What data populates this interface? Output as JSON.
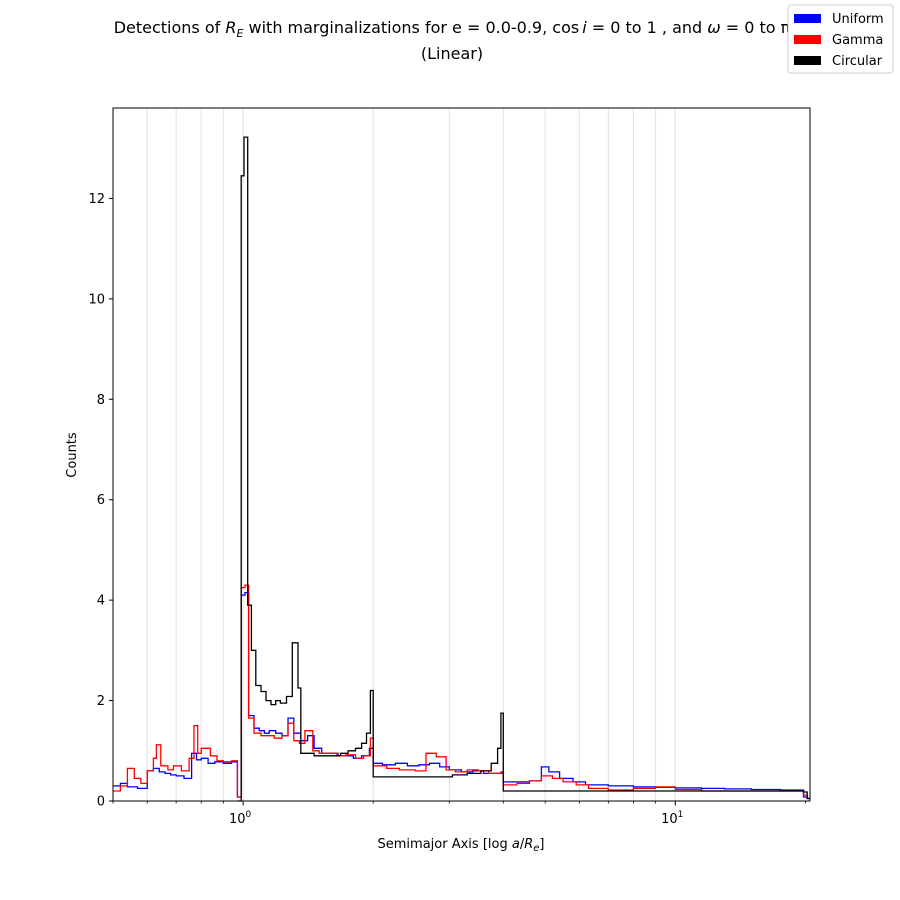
{
  "chart_data": {
    "type": "line",
    "drawstyle": "steps-post",
    "title_line1_pre": "Detections of ",
    "title_var": "R",
    "title_var_sub": "E",
    "title_line1_mid1": " with marginalizations for e = 0.0-0.9, cos",
    "title_i": "i",
    "title_line1_mid2": " = 0 to 1 , and ",
    "title_omega": "ω",
    "title_line1_end": " = 0 to π",
    "title_line2": "(Linear)",
    "xlabel_pre": "Semimajor Axis [log ",
    "xlabel_a": "a",
    "xlabel_slash": "/",
    "xlabel_R": "R",
    "xlabel_sub": "e",
    "xlabel_post": "]",
    "ylabel": "Counts",
    "xscale": "log",
    "xlim": [
      0.5,
      20.5
    ],
    "ylim": [
      0,
      13.8
    ],
    "ytick_labels": [
      "0",
      "2",
      "4",
      "6",
      "8",
      "10",
      "12"
    ],
    "xtick_base": "10",
    "xtick_exponents": [
      "0",
      "1"
    ],
    "grid": "vertical minor lines at 0.6–0.9, 1, 2–9, 10",
    "legend_position": "top-right (outside axes)",
    "series": [
      {
        "name": "Uniform",
        "color": "#0000ff",
        "points": [
          [
            0.5,
            0.3
          ],
          [
            0.52,
            0.35
          ],
          [
            0.54,
            0.28
          ],
          [
            0.57,
            0.25
          ],
          [
            0.6,
            0.6
          ],
          [
            0.62,
            0.65
          ],
          [
            0.64,
            0.58
          ],
          [
            0.66,
            0.55
          ],
          [
            0.68,
            0.52
          ],
          [
            0.7,
            0.5
          ],
          [
            0.73,
            0.45
          ],
          [
            0.76,
            0.95
          ],
          [
            0.78,
            0.82
          ],
          [
            0.8,
            0.85
          ],
          [
            0.83,
            0.75
          ],
          [
            0.86,
            0.78
          ],
          [
            0.9,
            0.75
          ],
          [
            0.94,
            0.78
          ],
          [
            0.97,
            0.08
          ],
          [
            0.99,
            4.1
          ],
          [
            1.01,
            4.15
          ],
          [
            1.03,
            1.7
          ],
          [
            1.06,
            1.45
          ],
          [
            1.09,
            1.4
          ],
          [
            1.12,
            1.35
          ],
          [
            1.15,
            1.4
          ],
          [
            1.19,
            1.35
          ],
          [
            1.23,
            1.3
          ],
          [
            1.27,
            1.65
          ],
          [
            1.31,
            1.35
          ],
          [
            1.36,
            1.2
          ],
          [
            1.41,
            1.3
          ],
          [
            1.46,
            1.05
          ],
          [
            1.52,
            0.95
          ],
          [
            1.58,
            0.95
          ],
          [
            1.65,
            0.9
          ],
          [
            1.72,
            0.9
          ],
          [
            1.8,
            0.85
          ],
          [
            1.88,
            0.9
          ],
          [
            1.96,
            1.05
          ],
          [
            2.0,
            0.75
          ],
          [
            2.1,
            0.72
          ],
          [
            2.25,
            0.75
          ],
          [
            2.4,
            0.7
          ],
          [
            2.55,
            0.72
          ],
          [
            2.7,
            0.75
          ],
          [
            2.85,
            0.68
          ],
          [
            3.0,
            0.62
          ],
          [
            3.2,
            0.58
          ],
          [
            3.4,
            0.6
          ],
          [
            3.6,
            0.55
          ],
          [
            3.8,
            0.55
          ],
          [
            4.0,
            0.38
          ],
          [
            4.3,
            0.38
          ],
          [
            4.6,
            0.4
          ],
          [
            4.9,
            0.68
          ],
          [
            5.1,
            0.58
          ],
          [
            5.4,
            0.45
          ],
          [
            5.8,
            0.38
          ],
          [
            6.2,
            0.32
          ],
          [
            7.0,
            0.3
          ],
          [
            8.0,
            0.28
          ],
          [
            9.0,
            0.27
          ],
          [
            10.0,
            0.26
          ],
          [
            11.5,
            0.25
          ],
          [
            13.0,
            0.24
          ],
          [
            15.0,
            0.23
          ],
          [
            17.5,
            0.22
          ],
          [
            19.8,
            0.08
          ],
          [
            20.2,
            0.05
          ],
          [
            20.5,
            0.05
          ]
        ]
      },
      {
        "name": "Gamma",
        "color": "#ff0000",
        "points": [
          [
            0.5,
            0.2
          ],
          [
            0.52,
            0.3
          ],
          [
            0.54,
            0.65
          ],
          [
            0.56,
            0.45
          ],
          [
            0.58,
            0.35
          ],
          [
            0.6,
            0.6
          ],
          [
            0.62,
            0.85
          ],
          [
            0.63,
            1.12
          ],
          [
            0.645,
            0.7
          ],
          [
            0.67,
            0.62
          ],
          [
            0.69,
            0.7
          ],
          [
            0.72,
            0.6
          ],
          [
            0.75,
            0.85
          ],
          [
            0.77,
            1.5
          ],
          [
            0.785,
            0.95
          ],
          [
            0.8,
            1.05
          ],
          [
            0.84,
            0.9
          ],
          [
            0.87,
            0.8
          ],
          [
            0.9,
            0.78
          ],
          [
            0.94,
            0.8
          ],
          [
            0.97,
            0.08
          ],
          [
            0.99,
            4.25
          ],
          [
            1.01,
            4.3
          ],
          [
            1.03,
            1.65
          ],
          [
            1.06,
            1.35
          ],
          [
            1.1,
            1.3
          ],
          [
            1.14,
            1.3
          ],
          [
            1.18,
            1.25
          ],
          [
            1.23,
            1.3
          ],
          [
            1.27,
            1.55
          ],
          [
            1.31,
            1.2
          ],
          [
            1.35,
            1.15
          ],
          [
            1.39,
            1.4
          ],
          [
            1.45,
            1.0
          ],
          [
            1.5,
            0.95
          ],
          [
            1.58,
            0.95
          ],
          [
            1.66,
            0.9
          ],
          [
            1.73,
            0.92
          ],
          [
            1.82,
            0.85
          ],
          [
            1.9,
            0.9
          ],
          [
            1.97,
            1.25
          ],
          [
            2.0,
            0.7
          ],
          [
            2.15,
            0.65
          ],
          [
            2.3,
            0.62
          ],
          [
            2.5,
            0.6
          ],
          [
            2.65,
            0.95
          ],
          [
            2.8,
            0.88
          ],
          [
            2.95,
            0.62
          ],
          [
            3.1,
            0.58
          ],
          [
            3.3,
            0.62
          ],
          [
            3.5,
            0.6
          ],
          [
            3.7,
            0.55
          ],
          [
            3.95,
            0.58
          ],
          [
            4.0,
            0.32
          ],
          [
            4.3,
            0.35
          ],
          [
            4.6,
            0.4
          ],
          [
            4.9,
            0.5
          ],
          [
            5.2,
            0.45
          ],
          [
            5.5,
            0.38
          ],
          [
            5.9,
            0.32
          ],
          [
            6.3,
            0.25
          ],
          [
            7.0,
            0.22
          ],
          [
            8.0,
            0.25
          ],
          [
            9.0,
            0.28
          ],
          [
            10.0,
            0.23
          ],
          [
            11.5,
            0.2
          ],
          [
            13.0,
            0.2
          ],
          [
            15.0,
            0.2
          ],
          [
            17.5,
            0.2
          ],
          [
            19.8,
            0.12
          ],
          [
            20.2,
            0.05
          ],
          [
            20.5,
            0.05
          ]
        ]
      },
      {
        "name": "Circular",
        "color": "#000000",
        "points": [
          [
            0.97,
            0.0
          ],
          [
            0.99,
            12.45
          ],
          [
            1.005,
            13.22
          ],
          [
            1.025,
            3.9
          ],
          [
            1.045,
            3.0
          ],
          [
            1.07,
            2.3
          ],
          [
            1.1,
            2.18
          ],
          [
            1.13,
            2.0
          ],
          [
            1.16,
            1.92
          ],
          [
            1.19,
            2.0
          ],
          [
            1.22,
            1.95
          ],
          [
            1.26,
            2.08
          ],
          [
            1.3,
            3.15
          ],
          [
            1.34,
            2.25
          ],
          [
            1.36,
            0.95
          ],
          [
            1.4,
            0.95
          ],
          [
            1.46,
            0.9
          ],
          [
            1.52,
            0.9
          ],
          [
            1.6,
            0.9
          ],
          [
            1.68,
            0.95
          ],
          [
            1.75,
            1.0
          ],
          [
            1.82,
            1.05
          ],
          [
            1.88,
            1.15
          ],
          [
            1.93,
            1.35
          ],
          [
            1.97,
            2.2
          ],
          [
            2.0,
            0.48
          ],
          [
            2.2,
            0.48
          ],
          [
            2.4,
            0.48
          ],
          [
            2.6,
            0.48
          ],
          [
            2.85,
            0.48
          ],
          [
            3.05,
            0.52
          ],
          [
            3.3,
            0.55
          ],
          [
            3.55,
            0.6
          ],
          [
            3.75,
            0.75
          ],
          [
            3.88,
            1.05
          ],
          [
            3.95,
            1.75
          ],
          [
            4.0,
            0.2
          ],
          [
            5.0,
            0.2
          ],
          [
            7.0,
            0.2
          ],
          [
            10.0,
            0.2
          ],
          [
            15.0,
            0.2
          ],
          [
            19.8,
            0.18
          ],
          [
            20.2,
            0.05
          ],
          [
            20.5,
            0.05
          ]
        ]
      }
    ]
  }
}
